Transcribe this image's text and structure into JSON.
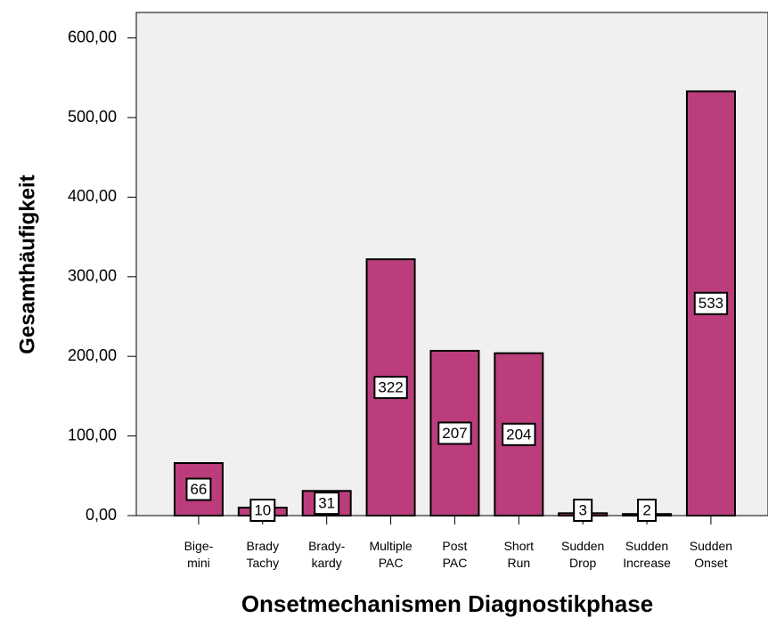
{
  "chart_data": {
    "type": "bar",
    "x_label": "Onsetmechanismen Diagnostikphase",
    "y_label": "Gesamthäufigkeit",
    "categories": [
      "Bige-\nmini",
      "Brady\nTachy",
      "Brady-\nkardy",
      "Multiple\nPAC",
      "Post\nPAC",
      "Short\nRun",
      "Sudden\nDrop",
      "Sudden\nIncrease",
      "Sudden\nOnset"
    ],
    "values": [
      66,
      10,
      31,
      322,
      207,
      204,
      3,
      2,
      533
    ],
    "color": "#bb3d7c",
    "ylim": [
      0,
      632
    ],
    "yticks": [
      {
        "value": 0,
        "label": "0,00"
      },
      {
        "value": 100,
        "label": "100,00"
      },
      {
        "value": 200,
        "label": "200,00"
      },
      {
        "value": 300,
        "label": "300,00"
      },
      {
        "value": 400,
        "label": "400,00"
      },
      {
        "value": 500,
        "label": "500,00"
      },
      {
        "value": 600,
        "label": "600,00"
      }
    ],
    "grid": false
  }
}
